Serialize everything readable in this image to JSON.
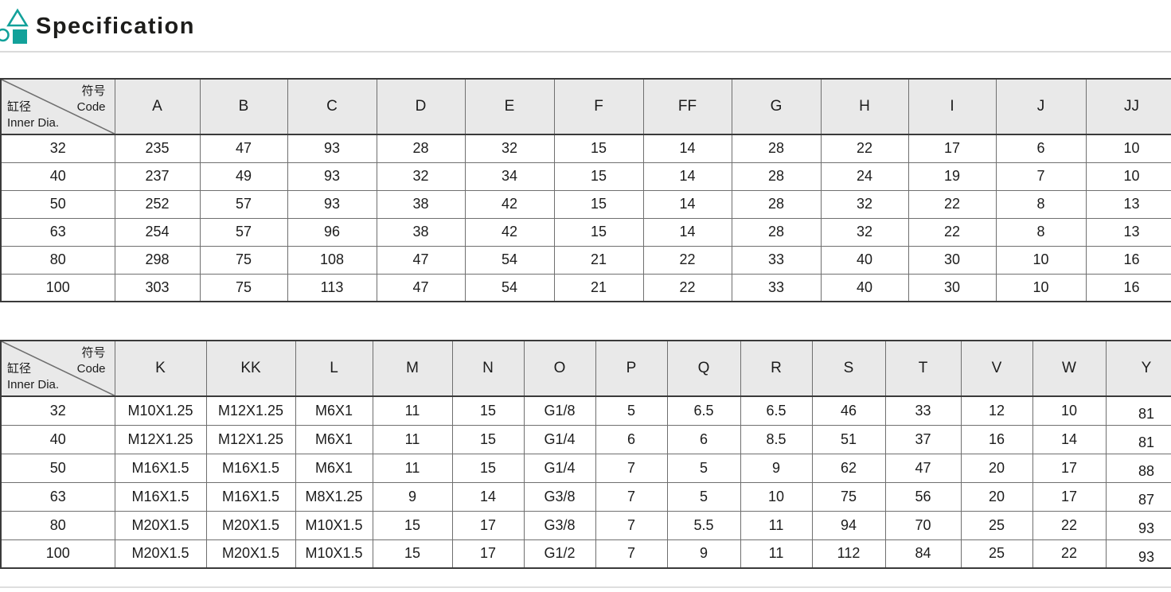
{
  "header": {
    "title": "Specification",
    "accent_color": "#12a19a",
    "icon": "shapes-logo-icon"
  },
  "corner": {
    "top_label_zh": "符号",
    "top_label_en": "Code",
    "bottom_label_zh": "缸径",
    "bottom_label_en": "Inner Dia."
  },
  "table1": {
    "columns": [
      "A",
      "B",
      "C",
      "D",
      "E",
      "F",
      "FF",
      "G",
      "H",
      "I",
      "J",
      "JJ"
    ],
    "rows": [
      {
        "inner_dia": "32",
        "values": [
          "235",
          "47",
          "93",
          "28",
          "32",
          "15",
          "14",
          "28",
          "22",
          "17",
          "6",
          "10"
        ]
      },
      {
        "inner_dia": "40",
        "values": [
          "237",
          "49",
          "93",
          "32",
          "34",
          "15",
          "14",
          "28",
          "24",
          "19",
          "7",
          "10"
        ]
      },
      {
        "inner_dia": "50",
        "values": [
          "252",
          "57",
          "93",
          "38",
          "42",
          "15",
          "14",
          "28",
          "32",
          "22",
          "8",
          "13"
        ]
      },
      {
        "inner_dia": "63",
        "values": [
          "254",
          "57",
          "96",
          "38",
          "42",
          "15",
          "14",
          "28",
          "32",
          "22",
          "8",
          "13"
        ]
      },
      {
        "inner_dia": "80",
        "values": [
          "298",
          "75",
          "108",
          "47",
          "54",
          "21",
          "22",
          "33",
          "40",
          "30",
          "10",
          "16"
        ]
      },
      {
        "inner_dia": "100",
        "values": [
          "303",
          "75",
          "113",
          "47",
          "54",
          "21",
          "22",
          "33",
          "40",
          "30",
          "10",
          "16"
        ]
      }
    ]
  },
  "table2": {
    "columns": [
      "K",
      "KK",
      "L",
      "M",
      "N",
      "O",
      "P",
      "Q",
      "R",
      "S",
      "T",
      "V",
      "W",
      "Y"
    ],
    "rows": [
      {
        "inner_dia": "32",
        "values": [
          "M10X1.25",
          "M12X1.25",
          "M6X1",
          "11",
          "15",
          "G1/8",
          "5",
          "6.5",
          "6.5",
          "46",
          "33",
          "12",
          "10",
          "81"
        ]
      },
      {
        "inner_dia": "40",
        "values": [
          "M12X1.25",
          "M12X1.25",
          "M6X1",
          "11",
          "15",
          "G1/4",
          "6",
          "6",
          "8.5",
          "51",
          "37",
          "16",
          "14",
          "81"
        ]
      },
      {
        "inner_dia": "50",
        "values": [
          "M16X1.5",
          "M16X1.5",
          "M6X1",
          "11",
          "15",
          "G1/4",
          "7",
          "5",
          "9",
          "62",
          "47",
          "20",
          "17",
          "88"
        ]
      },
      {
        "inner_dia": "63",
        "values": [
          "M16X1.5",
          "M16X1.5",
          "M8X1.25",
          "9",
          "14",
          "G3/8",
          "7",
          "5",
          "10",
          "75",
          "56",
          "20",
          "17",
          "87"
        ]
      },
      {
        "inner_dia": "80",
        "values": [
          "M20X1.5",
          "M20X1.5",
          "M10X1.5",
          "15",
          "17",
          "G3/8",
          "7",
          "5.5",
          "11",
          "94",
          "70",
          "25",
          "22",
          "93"
        ]
      },
      {
        "inner_dia": "100",
        "values": [
          "M20X1.5",
          "M20X1.5",
          "M10X1.5",
          "15",
          "17",
          "G1/2",
          "7",
          "9",
          "11",
          "112",
          "84",
          "25",
          "22",
          "93"
        ]
      }
    ]
  }
}
